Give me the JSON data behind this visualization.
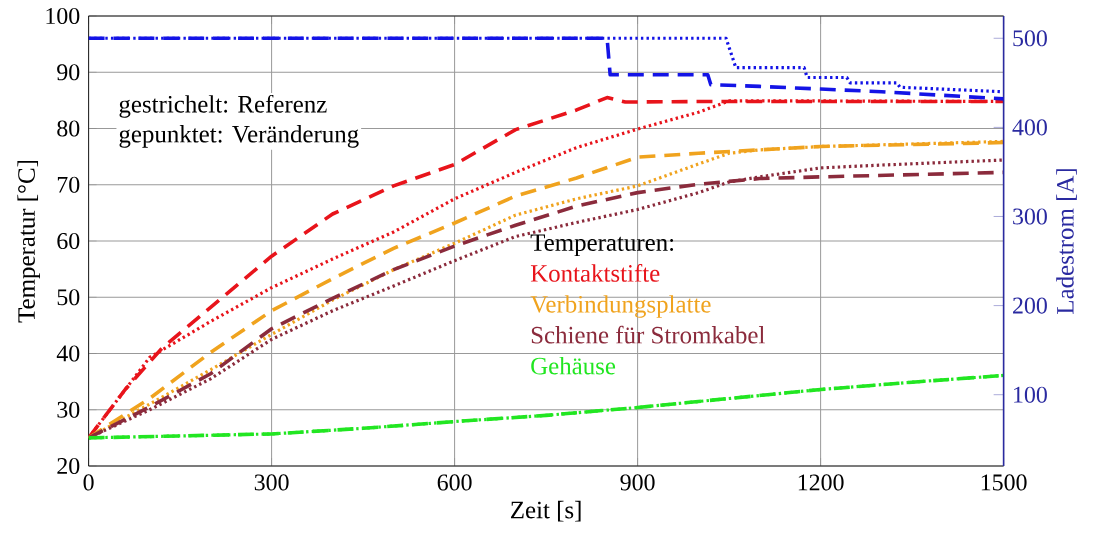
{
  "chart_data": {
    "type": "line",
    "xlabel": "Zeit [s]",
    "ylabel": "Temperatur [°C]",
    "y2label": "Ladestrom [A]",
    "xlim": [
      0,
      1500
    ],
    "xticks": [
      0,
      300,
      600,
      900,
      1200,
      1500
    ],
    "ylim": [
      20,
      100
    ],
    "yticks": [
      20,
      30,
      40,
      50,
      60,
      70,
      80,
      90,
      100
    ],
    "y2lim": [
      20,
      525
    ],
    "y2ticks": [
      100,
      200,
      300,
      400,
      500
    ],
    "grid": true,
    "legend": "right",
    "legend_title": "Temperaturen:",
    "annotations": [
      "gestrichelt: Referenz",
      "gepunktet:  Veränderung"
    ],
    "series": [
      {
        "name": "Kontaktstifte",
        "color": "#e8141b",
        "line_style": "dashed",
        "x": [
          0,
          60,
          120,
          200,
          300,
          400,
          500,
          600,
          700,
          800,
          850,
          880,
          1000,
          1200,
          1500
        ],
        "values": [
          25,
          33.6,
          40.9,
          48.2,
          57.3,
          64.8,
          69.8,
          73.6,
          79.8,
          83.3,
          85.5,
          84.7,
          84.8,
          84.8,
          84.8
        ]
      },
      {
        "color": "#e8141b",
        "line_style": "dotted",
        "x": [
          0,
          100,
          200,
          300,
          400,
          500,
          600,
          700,
          800,
          900,
          1000,
          1050,
          1200,
          1500
        ],
        "values": [
          25,
          39.3,
          45.7,
          51.7,
          56.8,
          61.6,
          67.5,
          72.2,
          76.6,
          79.9,
          82.9,
          84.9,
          84.9,
          84.8
        ]
      },
      {
        "name": "Verbindungsplatte",
        "color": "#f0a31e",
        "line_style": "dashed",
        "x": [
          0,
          100,
          200,
          300,
          400,
          500,
          600,
          700,
          800,
          900,
          1000,
          1100,
          1200,
          1500
        ],
        "values": [
          25,
          32,
          40.2,
          47.6,
          53.3,
          58.7,
          63.2,
          68,
          71.2,
          74.9,
          75.6,
          76.2,
          76.8,
          77.5
        ]
      },
      {
        "color": "#f0a31e",
        "line_style": "dotted",
        "x": [
          0,
          100,
          200,
          300,
          400,
          500,
          600,
          700,
          800,
          900,
          1000,
          1050,
          1100,
          1200,
          1500
        ],
        "values": [
          25,
          31,
          37.1,
          43.4,
          49.5,
          54.9,
          59.6,
          64.6,
          67.5,
          69.8,
          73.7,
          75.6,
          76.2,
          76.8,
          77.7
        ]
      },
      {
        "name": "Schiene für Stromkabel",
        "color": "#8b2b3c",
        "line_style": "dashed",
        "x": [
          0,
          100,
          200,
          300,
          400,
          500,
          600,
          700,
          800,
          900,
          1000,
          1100,
          1200,
          1500
        ],
        "values": [
          25,
          30.5,
          36.4,
          44.4,
          49.8,
          54.9,
          59.1,
          62.8,
          66.2,
          68.6,
          70.1,
          71.1,
          71.4,
          72.2
        ]
      },
      {
        "color": "#8b2b3c",
        "line_style": "dotted",
        "x": [
          0,
          100,
          200,
          300,
          400,
          500,
          600,
          700,
          800,
          900,
          1000,
          1050,
          1100,
          1200,
          1300,
          1500
        ],
        "values": [
          25,
          30,
          35.5,
          42.5,
          47.6,
          52,
          56.5,
          60.8,
          63.3,
          65.6,
          68.6,
          70.5,
          71.4,
          73,
          73.5,
          74.4
        ]
      },
      {
        "name": "Gehäuse",
        "color": "#22e622",
        "line_style": "dashed",
        "x": [
          0,
          300,
          450,
          600,
          750,
          900,
          1050,
          1200,
          1350,
          1500
        ],
        "values": [
          25,
          25.7,
          26.7,
          27.9,
          29,
          30.4,
          32,
          33.6,
          34.9,
          36.1
        ]
      },
      {
        "color": "#22e622",
        "line_style": "dotted",
        "x": [
          0,
          300,
          450,
          600,
          750,
          900,
          1050,
          1200,
          1350,
          1500
        ],
        "values": [
          25,
          25.7,
          26.7,
          27.9,
          29,
          30.4,
          32,
          33.6,
          34.9,
          36.1
        ]
      },
      {
        "color": "#1414e6",
        "line_style": "dashed",
        "axis": "y2",
        "x": [
          0,
          850,
          855,
          1015,
          1020,
          1100,
          1200,
          1300,
          1400,
          1500
        ],
        "values": [
          500,
          500,
          459,
          459,
          448,
          446,
          443,
          440,
          436,
          432
        ]
      },
      {
        "color": "#1414e6",
        "line_style": "dotted",
        "axis": "y2",
        "x": [
          0,
          1045,
          1061,
          1173,
          1178,
          1243,
          1248,
          1325,
          1330,
          1500
        ],
        "values": [
          500,
          500,
          467,
          467,
          456,
          456,
          450,
          450,
          445,
          440
        ]
      }
    ]
  }
}
